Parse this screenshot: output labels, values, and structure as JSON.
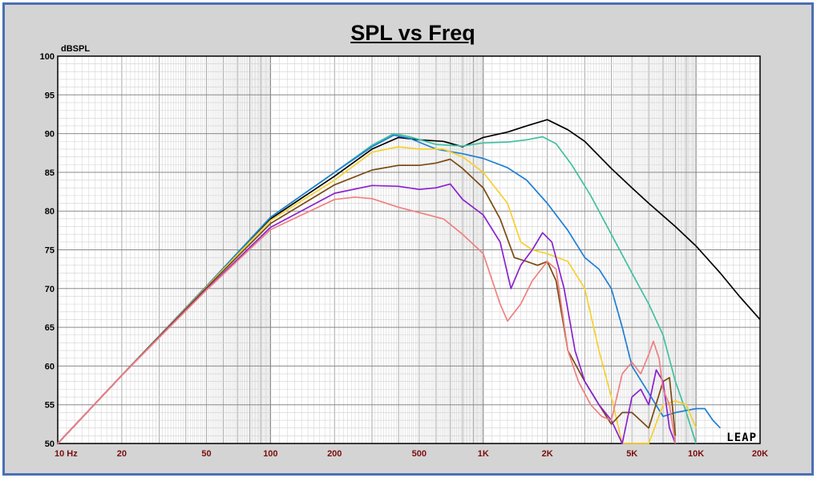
{
  "chart_data": {
    "type": "line",
    "title": "SPL vs Freq",
    "ylabel": "dBSPL",
    "xscale": "log",
    "xlim": [
      10,
      20000
    ],
    "ylim": [
      50,
      100
    ],
    "grid": true,
    "x_tick_labels": [
      {
        "f": 10,
        "label": "10  Hz"
      },
      {
        "f": 20,
        "label": "20"
      },
      {
        "f": 50,
        "label": "50"
      },
      {
        "f": 100,
        "label": "100"
      },
      {
        "f": 200,
        "label": "200"
      },
      {
        "f": 500,
        "label": "500"
      },
      {
        "f": 1000,
        "label": "1K"
      },
      {
        "f": 2000,
        "label": "2K"
      },
      {
        "f": 5000,
        "label": "5K"
      },
      {
        "f": 10000,
        "label": "10K"
      },
      {
        "f": 20000,
        "label": "20K"
      }
    ],
    "y_tick_labels": [
      "50",
      "55",
      "60",
      "65",
      "70",
      "75",
      "80",
      "85",
      "90",
      "95",
      "100"
    ],
    "watermark": "LEAP",
    "series": [
      {
        "color": "#000000",
        "points": [
          [
            10,
            50
          ],
          [
            20,
            58.8
          ],
          [
            50,
            70.3
          ],
          [
            100,
            79
          ],
          [
            200,
            84.5
          ],
          [
            300,
            88
          ],
          [
            400,
            89.5
          ],
          [
            500,
            89.2
          ],
          [
            650,
            89
          ],
          [
            800,
            88.3
          ],
          [
            1000,
            89.5
          ],
          [
            1300,
            90.2
          ],
          [
            1600,
            91
          ],
          [
            2000,
            91.8
          ],
          [
            2500,
            90.5
          ],
          [
            3000,
            89
          ],
          [
            4000,
            85.5
          ],
          [
            5000,
            83
          ],
          [
            6000,
            81
          ],
          [
            8000,
            78
          ],
          [
            10000,
            75.5
          ],
          [
            13000,
            72
          ],
          [
            16000,
            69
          ],
          [
            20000,
            66
          ]
        ]
      },
      {
        "color": "#40c0a0",
        "points": [
          [
            10,
            50
          ],
          [
            20,
            58.8
          ],
          [
            50,
            70.3
          ],
          [
            100,
            79.2
          ],
          [
            200,
            85
          ],
          [
            300,
            88.5
          ],
          [
            380,
            90
          ],
          [
            450,
            89.6
          ],
          [
            600,
            88.6
          ],
          [
            800,
            88.4
          ],
          [
            1000,
            88.8
          ],
          [
            1300,
            88.9
          ],
          [
            1600,
            89.2
          ],
          [
            1900,
            89.6
          ],
          [
            2200,
            88.7
          ],
          [
            2600,
            86
          ],
          [
            3200,
            82
          ],
          [
            4000,
            77
          ],
          [
            5000,
            72
          ],
          [
            6000,
            68
          ],
          [
            7000,
            64
          ],
          [
            8000,
            58
          ],
          [
            9000,
            54
          ],
          [
            10000,
            50
          ]
        ]
      },
      {
        "color": "#1f7fd4",
        "points": [
          [
            10,
            50
          ],
          [
            20,
            58.8
          ],
          [
            50,
            70.3
          ],
          [
            100,
            79.2
          ],
          [
            200,
            85
          ],
          [
            300,
            88.3
          ],
          [
            380,
            89.8
          ],
          [
            450,
            89.4
          ],
          [
            600,
            88
          ],
          [
            800,
            87.4
          ],
          [
            1000,
            86.8
          ],
          [
            1300,
            85.6
          ],
          [
            1600,
            84
          ],
          [
            2000,
            81
          ],
          [
            2500,
            77.5
          ],
          [
            3000,
            74
          ],
          [
            3500,
            72.5
          ],
          [
            4000,
            70
          ],
          [
            4500,
            65
          ],
          [
            5000,
            60
          ],
          [
            6000,
            56.5
          ],
          [
            7000,
            53.5
          ],
          [
            8000,
            54
          ],
          [
            10000,
            54.5
          ],
          [
            11000,
            54.5
          ],
          [
            12000,
            53
          ],
          [
            13000,
            52
          ]
        ]
      },
      {
        "color": "#f5d030",
        "points": [
          [
            10,
            50
          ],
          [
            20,
            58.8
          ],
          [
            50,
            70.2
          ],
          [
            100,
            78.8
          ],
          [
            200,
            84
          ],
          [
            300,
            87.6
          ],
          [
            400,
            88.3
          ],
          [
            500,
            88
          ],
          [
            650,
            88
          ],
          [
            800,
            87
          ],
          [
            1000,
            85
          ],
          [
            1300,
            81
          ],
          [
            1500,
            76
          ],
          [
            1700,
            75
          ],
          [
            2000,
            74.5
          ],
          [
            2500,
            73.5
          ],
          [
            3000,
            70
          ],
          [
            3500,
            62
          ],
          [
            4000,
            56
          ],
          [
            4500,
            50
          ],
          [
            5000,
            50
          ],
          [
            6000,
            50
          ],
          [
            7000,
            55
          ],
          [
            8000,
            55.5
          ],
          [
            9000,
            55
          ],
          [
            10000,
            52
          ]
        ]
      },
      {
        "color": "#7a4a10",
        "points": [
          [
            10,
            50
          ],
          [
            20,
            58.8
          ],
          [
            50,
            70.1
          ],
          [
            100,
            78.4
          ],
          [
            200,
            83.4
          ],
          [
            300,
            85.3
          ],
          [
            400,
            85.9
          ],
          [
            500,
            85.9
          ],
          [
            600,
            86.2
          ],
          [
            700,
            86.7
          ],
          [
            800,
            85.5
          ],
          [
            1000,
            83
          ],
          [
            1200,
            79
          ],
          [
            1400,
            74
          ],
          [
            1600,
            73.5
          ],
          [
            1800,
            73
          ],
          [
            2000,
            73.5
          ],
          [
            2200,
            71
          ],
          [
            2500,
            62
          ],
          [
            3000,
            58
          ],
          [
            3500,
            55
          ],
          [
            4000,
            52.5
          ],
          [
            4500,
            54
          ],
          [
            5000,
            54
          ],
          [
            6000,
            52
          ],
          [
            7000,
            58
          ],
          [
            7500,
            58.5
          ],
          [
            8000,
            51
          ]
        ]
      },
      {
        "color": "#8a22d0",
        "points": [
          [
            10,
            50
          ],
          [
            20,
            58.8
          ],
          [
            50,
            69.9
          ],
          [
            100,
            77.9
          ],
          [
            200,
            82.3
          ],
          [
            300,
            83.3
          ],
          [
            400,
            83.2
          ],
          [
            500,
            82.8
          ],
          [
            600,
            83
          ],
          [
            700,
            83.5
          ],
          [
            800,
            81.5
          ],
          [
            1000,
            79.5
          ],
          [
            1200,
            76
          ],
          [
            1350,
            70
          ],
          [
            1500,
            73
          ],
          [
            1700,
            75
          ],
          [
            1900,
            77.2
          ],
          [
            2100,
            76
          ],
          [
            2400,
            70
          ],
          [
            2700,
            62
          ],
          [
            3000,
            58
          ],
          [
            3500,
            55
          ],
          [
            4000,
            53
          ],
          [
            4500,
            50
          ],
          [
            5000,
            56
          ],
          [
            5500,
            57
          ],
          [
            6000,
            55
          ],
          [
            6500,
            59.5
          ],
          [
            7000,
            58
          ],
          [
            7500,
            52
          ],
          [
            8000,
            50
          ]
        ]
      },
      {
        "color": "#f08080",
        "points": [
          [
            10,
            50
          ],
          [
            20,
            58.8
          ],
          [
            50,
            69.8
          ],
          [
            100,
            77.6
          ],
          [
            200,
            81.5
          ],
          [
            250,
            81.8
          ],
          [
            300,
            81.6
          ],
          [
            400,
            80.5
          ],
          [
            500,
            79.8
          ],
          [
            650,
            79
          ],
          [
            800,
            77
          ],
          [
            1000,
            74.5
          ],
          [
            1200,
            68
          ],
          [
            1300,
            65.8
          ],
          [
            1500,
            68
          ],
          [
            1700,
            71
          ],
          [
            2000,
            73.5
          ],
          [
            2200,
            72.5
          ],
          [
            2500,
            62
          ],
          [
            2800,
            58
          ],
          [
            3200,
            55
          ],
          [
            3600,
            53.5
          ],
          [
            4000,
            53
          ],
          [
            4500,
            59
          ],
          [
            5000,
            60.5
          ],
          [
            5500,
            59
          ],
          [
            6000,
            61.5
          ],
          [
            6300,
            63.2
          ],
          [
            6700,
            61
          ],
          [
            7000,
            57
          ],
          [
            7500,
            55
          ],
          [
            8000,
            50
          ]
        ]
      }
    ]
  }
}
